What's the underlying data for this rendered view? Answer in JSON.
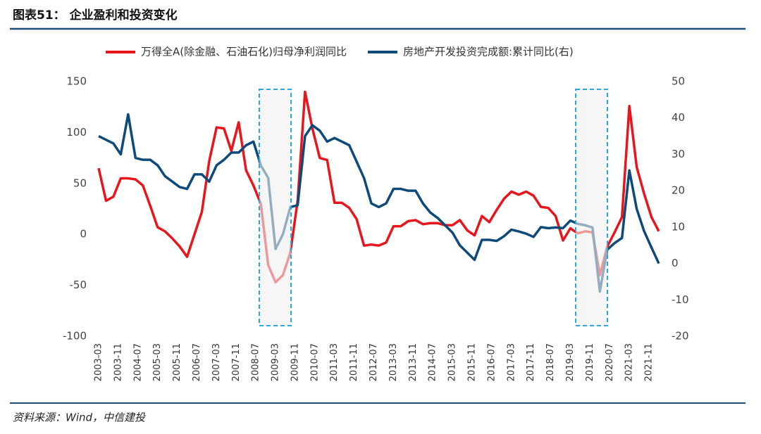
{
  "chart_data": {
    "type": "line",
    "title": "图表51：  企业盈利和投资变化",
    "source": "资料来源：Wind，中信建投",
    "x": [
      "2003-03",
      "2003-06",
      "2003-09",
      "2003-12",
      "2004-03",
      "2004-06",
      "2004-09",
      "2004-12",
      "2005-03",
      "2005-06",
      "2005-09",
      "2005-12",
      "2006-03",
      "2006-06",
      "2006-09",
      "2006-12",
      "2007-03",
      "2007-06",
      "2007-09",
      "2007-12",
      "2008-03",
      "2008-06",
      "2008-09",
      "2008-12",
      "2009-03",
      "2009-06",
      "2009-09",
      "2009-12",
      "2010-03",
      "2010-06",
      "2010-09",
      "2010-12",
      "2011-03",
      "2011-06",
      "2011-09",
      "2011-12",
      "2012-03",
      "2012-06",
      "2012-09",
      "2012-12",
      "2013-03",
      "2013-06",
      "2013-09",
      "2013-12",
      "2014-03",
      "2014-06",
      "2014-09",
      "2014-12",
      "2015-03",
      "2015-06",
      "2015-09",
      "2015-12",
      "2016-03",
      "2016-06",
      "2016-09",
      "2016-12",
      "2017-03",
      "2017-06",
      "2017-09",
      "2017-12",
      "2018-03",
      "2018-06",
      "2018-09",
      "2018-12",
      "2019-03",
      "2019-06",
      "2019-09",
      "2019-12",
      "2020-03",
      "2020-06",
      "2020-09",
      "2020-12",
      "2021-03",
      "2021-06",
      "2021-09",
      "2021-12",
      "2022-03"
    ],
    "xlim": [
      "2003-03",
      "2022-03"
    ],
    "xticks": [
      "2003-03",
      "2003-11",
      "2004-07",
      "2005-03",
      "2005-11",
      "2006-07",
      "2007-03",
      "2007-11",
      "2008-07",
      "2009-03",
      "2009-11",
      "2010-07",
      "2011-03",
      "2011-11",
      "2012-07",
      "2013-03",
      "2013-11",
      "2014-07",
      "2015-03",
      "2015-11",
      "2016-07",
      "2017-03",
      "2017-11",
      "2018-07",
      "2019-03",
      "2019-11",
      "2020-07",
      "2021-03",
      "2021-11"
    ],
    "ylim": [
      -100,
      150
    ],
    "yticks": [
      -100,
      -50,
      0,
      50,
      100,
      150
    ],
    "y2lim": [
      -20,
      50
    ],
    "y2ticks": [
      -20,
      -10,
      0,
      10,
      20,
      30,
      40,
      50
    ],
    "series": [
      {
        "name": "万得全A(除金融、石油石化)归母净利润同比",
        "color": "#e8161c",
        "values": [
          65,
          33,
          37,
          55,
          55,
          54,
          48,
          28,
          7,
          3,
          -4,
          -12,
          -22,
          0,
          22,
          72,
          105,
          104,
          82,
          110,
          63,
          48,
          30,
          -30,
          -47,
          -40,
          -18,
          33,
          140,
          104,
          75,
          73,
          31,
          31,
          26,
          15,
          -11,
          -10,
          -11,
          -8,
          8,
          8,
          13,
          14,
          10,
          11,
          11,
          9,
          9,
          14,
          4,
          -1,
          18,
          12,
          24,
          35,
          42,
          39,
          42,
          38,
          27,
          26,
          18,
          -6,
          6,
          1,
          3,
          2,
          -40,
          -12,
          2,
          17,
          126,
          66,
          40,
          17,
          3
        ]
      },
      {
        "name": "房地产开发投资完成额:累计同比(右)",
        "color": "#0d4a7a",
        "axis": "y2",
        "values": [
          35,
          34,
          33,
          30,
          41,
          29,
          28.5,
          28.5,
          27,
          24,
          22.5,
          21,
          20.5,
          24.5,
          24.5,
          22.5,
          27,
          28.5,
          30.5,
          30.5,
          32.5,
          33.5,
          27,
          23.5,
          4,
          8,
          15.5,
          16,
          35,
          38,
          36.5,
          33.5,
          34.5,
          33.5,
          32.5,
          28,
          23.5,
          16.5,
          15.5,
          16.5,
          20.5,
          20.5,
          20,
          20,
          16.5,
          14,
          12.5,
          10.5,
          8.5,
          5,
          3,
          1,
          6.5,
          6.5,
          6.2,
          7.5,
          9.3,
          8.8,
          8.2,
          7.3,
          10,
          9.7,
          9.9,
          9.7,
          11.8,
          10.9,
          10.5,
          9.9,
          -7.7,
          3.8,
          5.6,
          7,
          25.6,
          15,
          8.9,
          4.4,
          0
        ]
      }
    ]
  }
}
